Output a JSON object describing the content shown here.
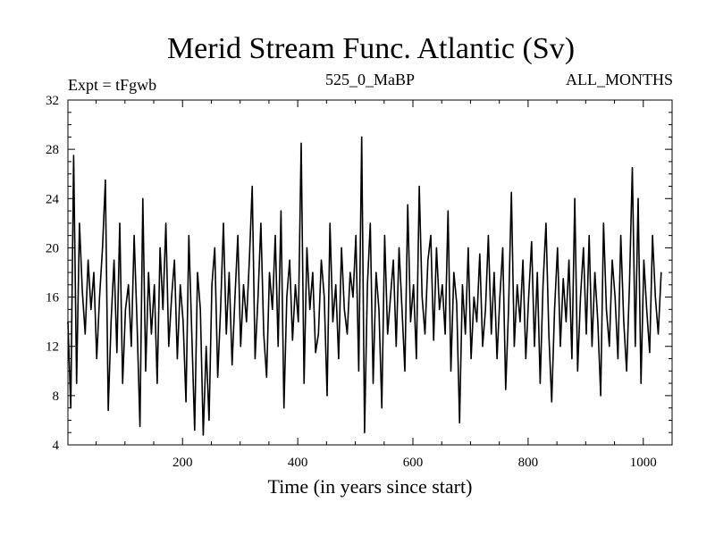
{
  "chart_data": {
    "type": "line",
    "title": "Merid Stream Func. Atlantic (Sv)",
    "subtitle_left": "Expt = tFgwb",
    "subtitle_center": "525_0_MaBP",
    "subtitle_right": "ALL_MONTHS",
    "xlabel": "Time (in years since start)",
    "ylabel": "",
    "xlim": [
      1,
      1050
    ],
    "ylim": [
      4,
      32
    ],
    "xticks": [
      200,
      400,
      600,
      800,
      1000
    ],
    "yticks": [
      4,
      8,
      12,
      16,
      20,
      24,
      28,
      32
    ],
    "series": [
      {
        "name": "Merid Stream Func. Atlantic",
        "color": "#000000",
        "x_start": 1,
        "x_step": 5,
        "values": [
          14.0,
          7.0,
          27.5,
          9.0,
          22.0,
          16.5,
          13.0,
          19.0,
          15.0,
          18.0,
          11.0,
          16.0,
          20.0,
          25.5,
          6.8,
          14.0,
          19.0,
          11.5,
          22.0,
          9.0,
          15.0,
          17.0,
          12.0,
          21.0,
          14.0,
          5.5,
          24.0,
          10.0,
          18.0,
          13.0,
          17.0,
          9.0,
          20.0,
          15.0,
          22.0,
          12.0,
          16.0,
          19.0,
          11.0,
          17.0,
          14.0,
          7.5,
          21.0,
          13.0,
          5.2,
          18.0,
          15.0,
          4.8,
          12.0,
          6.0,
          17.0,
          20.0,
          9.5,
          15.0,
          22.0,
          13.0,
          18.0,
          10.5,
          16.0,
          21.0,
          12.0,
          17.0,
          14.0,
          19.0,
          25.0,
          11.0,
          16.0,
          22.0,
          13.0,
          9.5,
          18.0,
          15.0,
          21.0,
          12.0,
          23.0,
          7.0,
          16.0,
          19.0,
          12.5,
          17.0,
          14.0,
          28.5,
          9.0,
          20.0,
          15.0,
          18.0,
          11.5,
          13.0,
          19.0,
          16.0,
          8.0,
          22.0,
          14.0,
          17.0,
          11.0,
          20.0,
          15.0,
          13.0,
          18.0,
          16.0,
          21.0,
          10.0,
          29.0,
          5.0,
          17.0,
          22.0,
          9.0,
          18.0,
          15.0,
          7.0,
          21.0,
          13.0,
          16.0,
          19.0,
          12.0,
          20.0,
          15.0,
          10.0,
          23.5,
          14.0,
          17.0,
          11.0,
          25.0,
          16.0,
          13.0,
          19.0,
          21.0,
          12.5,
          20.0,
          15.0,
          17.0,
          13.0,
          23.0,
          10.0,
          18.0,
          15.5,
          5.8,
          17.0,
          13.0,
          20.0,
          11.0,
          16.0,
          14.0,
          19.5,
          12.0,
          15.0,
          21.0,
          13.0,
          18.0,
          11.0,
          16.0,
          20.0,
          8.5,
          15.0,
          24.5,
          12.0,
          17.0,
          14.0,
          19.0,
          11.0,
          16.0,
          20.5,
          12.0,
          18.0,
          9.0,
          17.0,
          22.0,
          13.0,
          7.5,
          15.0,
          20.0,
          12.0,
          17.5,
          14.0,
          19.0,
          11.0,
          24.0,
          10.0,
          16.0,
          20.0,
          13.0,
          21.0,
          12.0,
          18.0,
          14.0,
          8.0,
          22.0,
          15.0,
          12.0,
          19.0,
          16.0,
          11.0,
          21.0,
          14.0,
          10.0,
          17.0,
          26.5,
          12.0,
          24.0,
          9.0,
          19.0,
          15.0,
          11.5,
          21.0,
          16.0,
          13.0,
          18.0
        ]
      }
    ]
  }
}
